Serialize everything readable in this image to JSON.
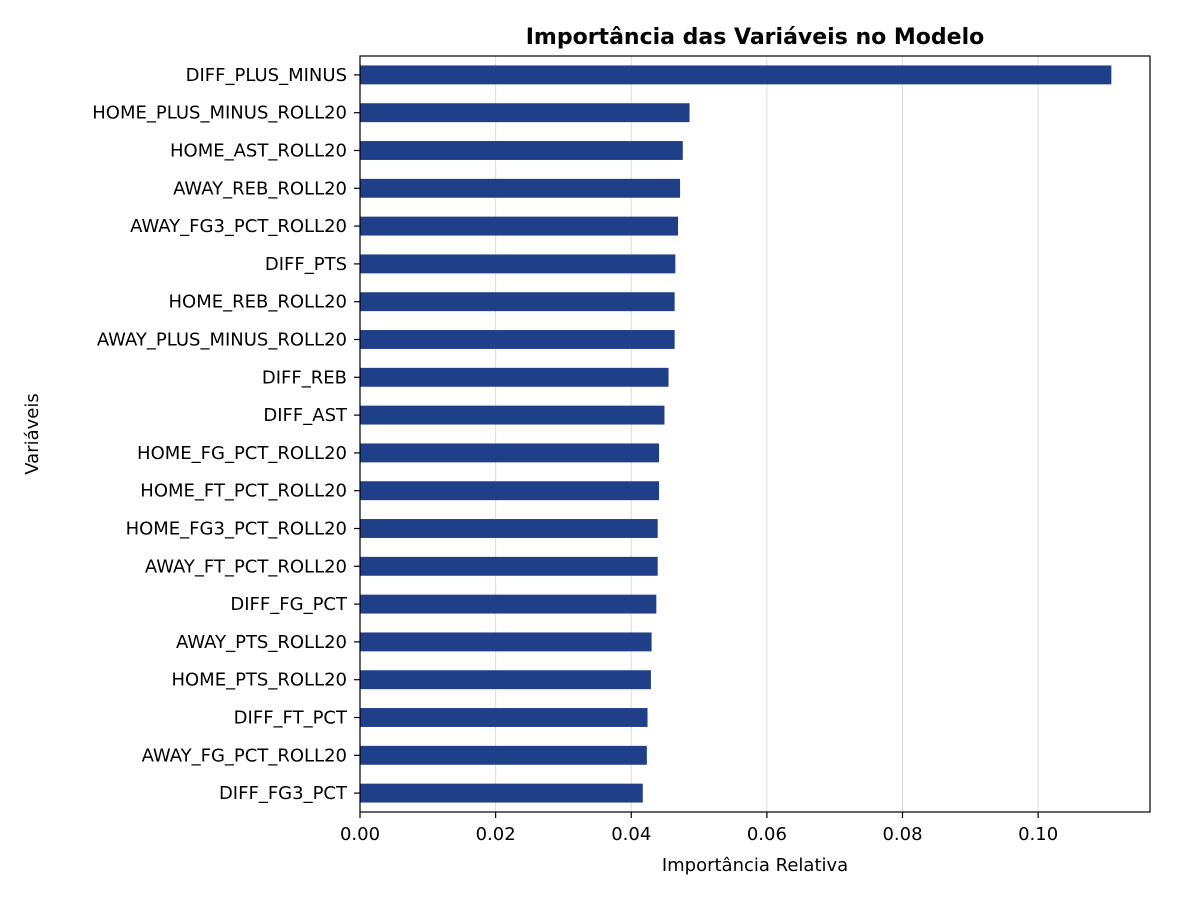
{
  "chart_data": {
    "type": "bar",
    "orientation": "horizontal",
    "title": "Importância das Variáveis no Modelo",
    "xlabel": "Importância Relativa",
    "ylabel": "Variáveis",
    "xlim": [
      0,
      0.1165
    ],
    "xticks": [
      0.0,
      0.02,
      0.04,
      0.06,
      0.08,
      0.1
    ],
    "xtick_labels": [
      "0.00",
      "0.02",
      "0.04",
      "0.06",
      "0.08",
      "0.10"
    ],
    "grid": "x",
    "bar_color": "#1f3f88",
    "categories": [
      "DIFF_PLUS_MINUS",
      "HOME_PLUS_MINUS_ROLL20",
      "HOME_AST_ROLL20",
      "AWAY_REB_ROLL20",
      "AWAY_FG3_PCT_ROLL20",
      "DIFF_PTS",
      "HOME_REB_ROLL20",
      "AWAY_PLUS_MINUS_ROLL20",
      "DIFF_REB",
      "DIFF_AST",
      "HOME_FG_PCT_ROLL20",
      "HOME_FT_PCT_ROLL20",
      "HOME_FG3_PCT_ROLL20",
      "AWAY_FT_PCT_ROLL20",
      "DIFF_FG_PCT",
      "AWAY_PTS_ROLL20",
      "HOME_PTS_ROLL20",
      "DIFF_FT_PCT",
      "AWAY_FG_PCT_ROLL20",
      "DIFF_FG3_PCT"
    ],
    "values": [
      0.1108,
      0.0486,
      0.0476,
      0.0472,
      0.0469,
      0.0465,
      0.0464,
      0.0464,
      0.0455,
      0.0449,
      0.0441,
      0.0441,
      0.0439,
      0.0439,
      0.0437,
      0.043,
      0.0429,
      0.0424,
      0.0423,
      0.0417
    ]
  }
}
